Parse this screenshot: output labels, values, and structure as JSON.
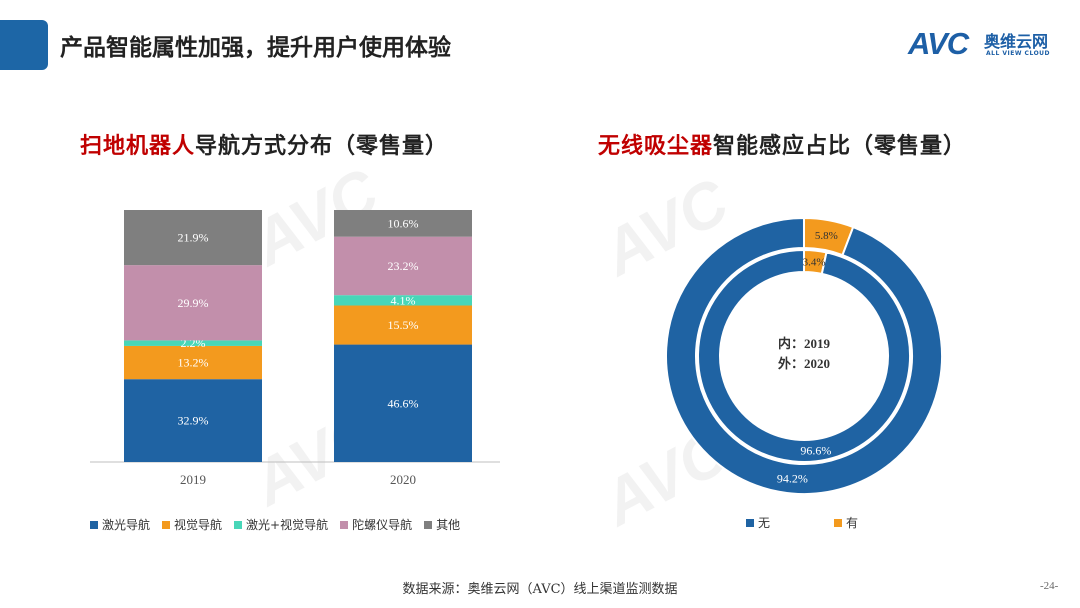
{
  "header": {
    "title": "产品智能属性加强，提升用户使用体验",
    "logo": {
      "mark": "AVC",
      "name_cn": "奥维云网",
      "name_en": "ALL VIEW CLOUD"
    }
  },
  "watermark": "AVC",
  "chart_data": [
    {
      "type": "bar",
      "stacked": true,
      "title_highlight": "扫地机器人",
      "title_rest": "导航方式分布（零售量）",
      "categories": [
        "2019",
        "2020"
      ],
      "series": [
        {
          "name": "激光导航",
          "color": "#1f63a3",
          "values": [
            32.9,
            46.6
          ],
          "labels": [
            "32.9%",
            "46.6%"
          ]
        },
        {
          "name": "视觉导航",
          "color": "#f39a1e",
          "values": [
            13.2,
            15.5
          ],
          "labels": [
            "13.2%",
            "15.5%"
          ]
        },
        {
          "name": "激光+视觉导航",
          "color": "#48d6b8",
          "values": [
            2.2,
            4.1
          ],
          "labels": [
            "2.2%",
            "4.1%"
          ]
        },
        {
          "name": "陀螺仪导航",
          "color": "#c28fab",
          "values": [
            29.9,
            23.2
          ],
          "labels": [
            "29.9%",
            "23.2%"
          ]
        },
        {
          "name": "其他",
          "color": "#7f7f7f",
          "values": [
            21.9,
            10.6
          ],
          "labels": [
            "21.9%",
            "10.6%"
          ]
        }
      ],
      "ylim": [
        0,
        100
      ]
    },
    {
      "type": "pie",
      "donut": true,
      "title_highlight": "无线吸尘器",
      "title_rest": "智能感应占比（零售量）",
      "center_label_inner": "内：2019",
      "center_label_outer": "外：2020",
      "rings": [
        {
          "name": "2019",
          "position": "inner",
          "slices": [
            {
              "name": "无",
              "value": 96.6,
              "label": "96.6%"
            },
            {
              "name": "有",
              "value": 3.4,
              "label": "3.4%"
            }
          ]
        },
        {
          "name": "2020",
          "position": "outer",
          "slices": [
            {
              "name": "无",
              "value": 94.2,
              "label": "94.2%"
            },
            {
              "name": "有",
              "value": 5.8,
              "label": "5.8%"
            }
          ]
        }
      ],
      "legend": [
        {
          "name": "无",
          "color": "#1f63a3"
        },
        {
          "name": "有",
          "color": "#f39a1e"
        }
      ]
    }
  ],
  "footer": {
    "source": "数据来源：奥维云网（AVC）线上渠道监测数据",
    "page": "-24-"
  }
}
